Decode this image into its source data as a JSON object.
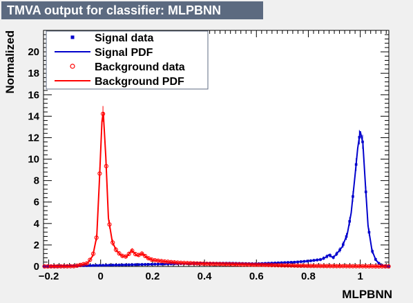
{
  "title": "TMVA output for classifier: MLPBNN",
  "chart_data": {
    "type": "line",
    "xlabel": "MLPBNN",
    "ylabel": "Normalized",
    "xlim": [
      -0.22,
      1.11
    ],
    "ylim": [
      0,
      22
    ],
    "x_ticks": [
      -0.2,
      0,
      0.2,
      0.4,
      0.6,
      0.8,
      1
    ],
    "x_tick_labels": [
      "−0.2",
      "0",
      "0.2",
      "0.4",
      "0.6",
      "0.8",
      "1"
    ],
    "y_ticks": [
      0,
      2,
      4,
      6,
      8,
      10,
      12,
      14,
      16,
      18,
      20
    ],
    "y_tick_labels": [
      "0",
      "2",
      "4",
      "6",
      "8",
      "10",
      "12",
      "14",
      "16",
      "18",
      "20"
    ],
    "grid": false,
    "legend_position": "top-left",
    "legend": [
      {
        "label": "Signal data",
        "kind": "marker-square",
        "color": "#0000cc"
      },
      {
        "label": "Signal PDF",
        "kind": "line",
        "color": "#0000cc"
      },
      {
        "label": "Background data",
        "kind": "marker-open-circle",
        "color": "#ff0000"
      },
      {
        "label": "Background PDF",
        "kind": "line",
        "color": "#ff0000"
      }
    ],
    "series": [
      {
        "name": "Signal PDF",
        "color": "#0000cc",
        "x": [
          -0.2,
          0.0,
          0.1,
          0.2,
          0.3,
          0.4,
          0.5,
          0.6,
          0.7,
          0.75,
          0.8,
          0.85,
          0.87,
          0.88,
          0.895,
          0.91,
          0.93,
          0.95,
          0.965,
          0.98,
          0.99,
          1.0,
          1.01,
          1.02,
          1.03,
          1.045,
          1.06,
          1.075,
          1.09,
          1.1
        ],
        "y": [
          0.0,
          0.1,
          0.15,
          0.2,
          0.25,
          0.3,
          0.3,
          0.25,
          0.35,
          0.4,
          0.5,
          0.65,
          0.9,
          1.1,
          0.8,
          1.2,
          1.8,
          3.0,
          5.0,
          8.5,
          11.0,
          12.6,
          11.5,
          7.5,
          3.8,
          1.5,
          0.6,
          0.2,
          0.05,
          0.0
        ]
      },
      {
        "name": "Background PDF",
        "color": "#ff0000",
        "x": [
          -0.2,
          -0.1,
          -0.05,
          -0.03,
          -0.015,
          -0.005,
          0.005,
          0.01,
          0.02,
          0.03,
          0.045,
          0.06,
          0.08,
          0.1,
          0.12,
          0.14,
          0.16,
          0.18,
          0.2,
          0.25,
          0.3,
          0.4,
          0.5,
          0.6,
          0.7,
          0.8,
          0.9,
          1.0,
          1.1
        ],
        "y": [
          0.0,
          0.02,
          0.3,
          1.0,
          2.8,
          7.8,
          13.5,
          14.4,
          10.2,
          4.5,
          2.3,
          1.5,
          1.0,
          0.9,
          1.5,
          1.0,
          1.2,
          0.8,
          0.6,
          0.45,
          0.35,
          0.25,
          0.2,
          0.15,
          0.1,
          0.05,
          0.03,
          0.02,
          0.0
        ]
      }
    ]
  }
}
